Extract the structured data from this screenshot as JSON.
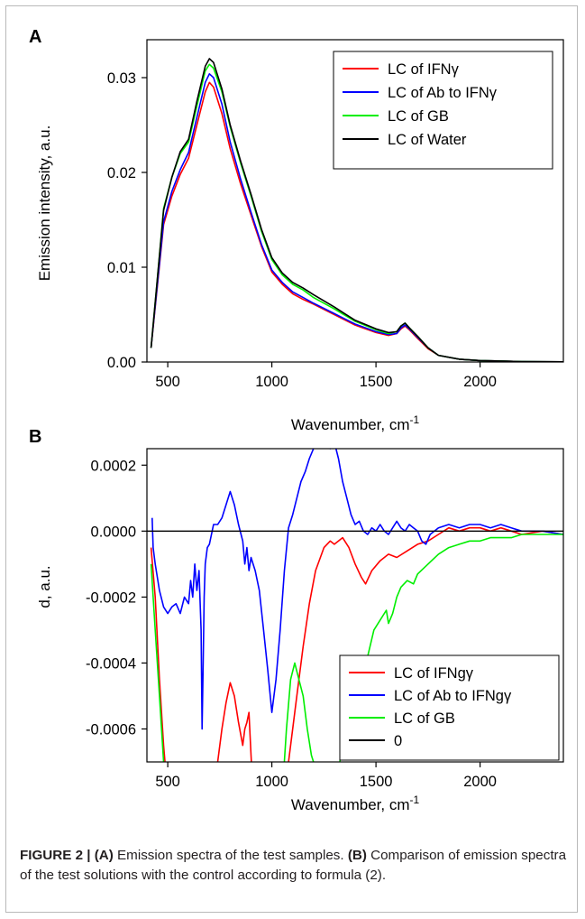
{
  "chart_data": [
    {
      "panel_label": "A",
      "type": "line",
      "xlabel": "Wavenumber, cm",
      "xlabel_sup": "-1",
      "ylabel": "Emission intensity, a.u.",
      "xlim": [
        400,
        2400
      ],
      "ylim": [
        0,
        0.034
      ],
      "xticks": [
        {
          "v": 500,
          "label": "500"
        },
        {
          "v": 1000,
          "label": "1000"
        },
        {
          "v": 1500,
          "label": "1500"
        },
        {
          "v": 2000,
          "label": "2000"
        }
      ],
      "yticks": [
        {
          "v": 0,
          "label": "0.00"
        },
        {
          "v": 0.01,
          "label": "0.01"
        },
        {
          "v": 0.02,
          "label": "0.02"
        },
        {
          "v": 0.03,
          "label": "0.03"
        }
      ],
      "legend_position": "top-right",
      "series": [
        {
          "name": "LC of IFNγ",
          "color": "#ff0000",
          "x": [
            420,
            450,
            480,
            520,
            560,
            600,
            640,
            680,
            700,
            720,
            760,
            800,
            850,
            900,
            950,
            1000,
            1050,
            1100,
            1150,
            1200,
            1300,
            1400,
            1500,
            1560,
            1600,
            1620,
            1640,
            1660,
            1700,
            1750,
            1800,
            1900,
            2000,
            2100,
            2200,
            2300,
            2400
          ],
          "y": [
            0.0015,
            0.008,
            0.0145,
            0.0175,
            0.0198,
            0.0215,
            0.025,
            0.0285,
            0.0295,
            0.029,
            0.0262,
            0.0225,
            0.0188,
            0.0155,
            0.0122,
            0.0095,
            0.0082,
            0.0072,
            0.0066,
            0.0061,
            0.005,
            0.0039,
            0.0031,
            0.0028,
            0.003,
            0.0035,
            0.0038,
            0.0034,
            0.0025,
            0.0014,
            0.0007,
            0.0003,
            0.00015,
            0.0001,
            5e-05,
            3e-05,
            2e-05
          ]
        },
        {
          "name": "LC of Ab to IFNγ",
          "color": "#0000ff",
          "x": [
            420,
            450,
            480,
            520,
            560,
            600,
            640,
            680,
            700,
            720,
            760,
            800,
            850,
            900,
            950,
            1000,
            1050,
            1100,
            1150,
            1200,
            1300,
            1400,
            1500,
            1560,
            1600,
            1620,
            1640,
            1660,
            1700,
            1750,
            1800,
            1900,
            2000,
            2100,
            2200,
            2300,
            2400
          ],
          "y": [
            0.0015,
            0.0082,
            0.0148,
            0.018,
            0.0203,
            0.0221,
            0.0258,
            0.0295,
            0.0304,
            0.03,
            0.0272,
            0.0232,
            0.0193,
            0.0158,
            0.0124,
            0.0097,
            0.0084,
            0.0074,
            0.0068,
            0.0062,
            0.0051,
            0.004,
            0.0032,
            0.0029,
            0.003,
            0.0036,
            0.0039,
            0.0035,
            0.0026,
            0.0015,
            0.0007,
            0.0003,
            0.00015,
            0.0001,
            5e-05,
            3e-05,
            2e-05
          ]
        },
        {
          "name": "LC of GB",
          "color": "#00ee00",
          "x": [
            420,
            450,
            480,
            520,
            560,
            600,
            640,
            680,
            700,
            720,
            760,
            800,
            850,
            900,
            950,
            1000,
            1050,
            1100,
            1150,
            1200,
            1300,
            1400,
            1500,
            1560,
            1600,
            1620,
            1640,
            1660,
            1700,
            1750,
            1800,
            1900,
            2000,
            2100,
            2200,
            2300,
            2400
          ],
          "y": [
            0.0015,
            0.0088,
            0.0162,
            0.0195,
            0.022,
            0.0232,
            0.027,
            0.0307,
            0.0314,
            0.031,
            0.0285,
            0.0248,
            0.021,
            0.0175,
            0.0138,
            0.0108,
            0.0092,
            0.0082,
            0.0076,
            0.0068,
            0.0056,
            0.0043,
            0.0034,
            0.003,
            0.0032,
            0.0038,
            0.0041,
            0.0036,
            0.0027,
            0.0015,
            0.0007,
            0.0003,
            0.00015,
            0.0001,
            5e-05,
            3e-05,
            2e-05
          ]
        },
        {
          "name": "LC of Water",
          "color": "#000000",
          "x": [
            420,
            450,
            480,
            520,
            560,
            600,
            640,
            680,
            700,
            720,
            760,
            800,
            850,
            900,
            950,
            1000,
            1050,
            1100,
            1150,
            1200,
            1300,
            1400,
            1500,
            1560,
            1600,
            1620,
            1640,
            1660,
            1700,
            1750,
            1800,
            1900,
            2000,
            2100,
            2200,
            2300,
            2400
          ],
          "y": [
            0.0015,
            0.0088,
            0.016,
            0.0195,
            0.0222,
            0.0235,
            0.0275,
            0.0312,
            0.032,
            0.0316,
            0.0288,
            0.025,
            0.0212,
            0.0177,
            0.014,
            0.011,
            0.0094,
            0.0084,
            0.0078,
            0.0071,
            0.0058,
            0.0044,
            0.0035,
            0.0031,
            0.0032,
            0.0038,
            0.0041,
            0.0036,
            0.0027,
            0.0015,
            0.0007,
            0.0003,
            0.00015,
            0.0001,
            5e-05,
            3e-05,
            2e-05
          ]
        }
      ]
    },
    {
      "panel_label": "B",
      "type": "line",
      "xlabel": "Wavenumber, cm",
      "xlabel_sup": "-1",
      "ylabel": "d, a.u.",
      "xlim": [
        400,
        2400
      ],
      "ylim": [
        -0.0007,
        0.00025
      ],
      "xticks": [
        {
          "v": 500,
          "label": "500"
        },
        {
          "v": 1000,
          "label": "1000"
        },
        {
          "v": 1500,
          "label": "1500"
        },
        {
          "v": 2000,
          "label": "2000"
        }
      ],
      "yticks": [
        {
          "v": 0.0002,
          "label": "0.0002"
        },
        {
          "v": 0,
          "label": "0.0000"
        },
        {
          "v": -0.0002,
          "label": "-0.0002"
        },
        {
          "v": -0.0004,
          "label": "-0.0004"
        },
        {
          "v": -0.0006,
          "label": "-0.0006"
        }
      ],
      "legend_position": "bottom-right",
      "series": [
        {
          "name": "LC of IFNgγ",
          "color": "#ff0000",
          "segments": [
            {
              "x": [
                420,
                440,
                460,
                480,
                500
              ],
              "y": [
                -5e-05,
                -0.0002,
                -0.00045,
                -0.00065,
                -0.0008
              ]
            },
            {
              "x": [
                720,
                740,
                760,
                780,
                800,
                820,
                840,
                860,
                870,
                880,
                890,
                900,
                910
              ],
              "y": [
                -0.0008,
                -0.0007,
                -0.0006,
                -0.00052,
                -0.00046,
                -0.0005,
                -0.00058,
                -0.00065,
                -0.0006,
                -0.00058,
                -0.00055,
                -0.00068,
                -0.0008
              ]
            },
            {
              "x": [
                1055,
                1080,
                1100,
                1120,
                1150,
                1180,
                1210,
                1250,
                1280,
                1300,
                1340,
                1370,
                1400,
                1430,
                1450,
                1480,
                1520,
                1560,
                1600,
                1650,
                1700,
                1750,
                1800,
                1850,
                1900,
                1950,
                2000,
                2050,
                2100,
                2150,
                2200,
                2300,
                2400
              ],
              "y": [
                -0.0008,
                -0.0007,
                -0.0006,
                -0.0005,
                -0.00035,
                -0.00022,
                -0.00012,
                -5e-05,
                -3e-05,
                -4e-05,
                -2e-05,
                -5e-05,
                -0.0001,
                -0.00014,
                -0.00016,
                -0.00012,
                -9e-05,
                -7e-05,
                -8e-05,
                -6e-05,
                -4e-05,
                -3e-05,
                -1e-05,
                1e-05,
                0.0,
                1e-05,
                1e-05,
                0.0,
                1e-05,
                0.0,
                -1e-05,
                0.0,
                -1e-05
              ]
            }
          ]
        },
        {
          "name": "LC of Ab to IFNgγ",
          "color": "#0000ff",
          "segments": [
            {
              "x": [
                425,
                430,
                440,
                460,
                480,
                500,
                520,
                540,
                560,
                580,
                600,
                610,
                620,
                630,
                640,
                650,
                660,
                665,
                670,
                675,
                680,
                690,
                700,
                720,
                740,
                760,
                780,
                800,
                820,
                840,
                860,
                870,
                880,
                890,
                900,
                920,
                940,
                960,
                980,
                1000,
                1020,
                1040,
                1060,
                1080,
                1100,
                1120,
                1140,
                1160,
                1180,
                1200,
                1220,
                1240,
                1260,
                1280,
                1300,
                1320,
                1340,
                1360,
                1380,
                1400,
                1420,
                1440,
                1460,
                1480,
                1500,
                1520,
                1540,
                1560,
                1580,
                1600,
                1620,
                1640,
                1660,
                1680,
                1700,
                1720,
                1740,
                1760,
                1800,
                1850,
                1900,
                1950,
                2000,
                2050,
                2100,
                2150,
                2200,
                2300,
                2400
              ],
              "y": [
                4e-05,
                -5e-05,
                -0.0001,
                -0.00018,
                -0.00023,
                -0.00025,
                -0.00023,
                -0.00022,
                -0.00025,
                -0.0002,
                -0.00022,
                -0.00015,
                -0.0002,
                -0.0001,
                -0.00018,
                -0.00012,
                -0.0003,
                -0.0006,
                -0.0004,
                -0.0002,
                -0.0001,
                -5e-05,
                -4e-05,
                2e-05,
                2e-05,
                4e-05,
                8e-05,
                0.00012,
                8e-05,
                2e-05,
                -3e-05,
                -0.0001,
                -5e-05,
                -0.00012,
                -8e-05,
                -0.00012,
                -0.00018,
                -0.0003,
                -0.00042,
                -0.00055,
                -0.00045,
                -0.0003,
                -0.00012,
                1e-05,
                5e-05,
                0.0001,
                0.00015,
                0.00018,
                0.00022,
                0.00025,
                0.00028,
                0.0003,
                0.00029,
                0.00025,
                0.00027,
                0.00022,
                0.00015,
                0.0001,
                5e-05,
                2e-05,
                3e-05,
                0.0,
                -1e-05,
                1e-05,
                0.0,
                2e-05,
                0.0,
                -1e-05,
                1e-05,
                3e-05,
                1e-05,
                0.0,
                2e-05,
                1e-05,
                0.0,
                -3e-05,
                -4e-05,
                -1e-05,
                1e-05,
                2e-05,
                1e-05,
                2e-05,
                2e-05,
                1e-05,
                2e-05,
                1e-05,
                0.0,
                0.0,
                -1e-05
              ]
            }
          ]
        },
        {
          "name": "LC of GB",
          "color": "#00ee00",
          "segments": [
            {
              "x": [
                420,
                440,
                460,
                480,
                500
              ],
              "y": [
                -0.0001,
                -0.0003,
                -0.0005,
                -0.0007,
                -0.0008
              ]
            },
            {
              "x": [
                1050,
                1070,
                1090,
                1110,
                1130,
                1150,
                1170,
                1190,
                1210,
                1230,
                1250
              ],
              "y": [
                -0.0008,
                -0.0006,
                -0.00045,
                -0.0004,
                -0.00045,
                -0.0005,
                -0.0006,
                -0.00068,
                -0.00072,
                -0.0008,
                -0.00075
              ]
            },
            {
              "x": [
                1310,
                1330,
                1360,
                1400,
                1430,
                1460,
                1490,
                1520,
                1550,
                1560,
                1580,
                1600,
                1620,
                1650,
                1680,
                1700,
                1750,
                1800,
                1850,
                1900,
                1950,
                2000,
                2050,
                2100,
                2150,
                2200,
                2250,
                2300,
                2400
              ],
              "y": [
                -0.0008,
                -0.00068,
                -0.0006,
                -0.00052,
                -0.00045,
                -0.00038,
                -0.0003,
                -0.00027,
                -0.00024,
                -0.00028,
                -0.00025,
                -0.0002,
                -0.00017,
                -0.00015,
                -0.00016,
                -0.00013,
                -0.0001,
                -7e-05,
                -5e-05,
                -4e-05,
                -3e-05,
                -3e-05,
                -2e-05,
                -2e-05,
                -2e-05,
                -1e-05,
                -1e-05,
                -1e-05,
                -1e-05
              ]
            }
          ]
        },
        {
          "name": "0",
          "color": "#000000",
          "segments": [
            {
              "x": [
                400,
                2400
              ],
              "y": [
                0,
                0
              ]
            }
          ]
        }
      ]
    }
  ],
  "caption": {
    "label": "FIGURE 2 | ",
    "part_a_label": "(A)",
    "part_a_text": " Emission spectra of the test samples. ",
    "part_b_label": "(B)",
    "part_b_text": " Comparison of emission spectra of the test solutions with the control according to formula (2)."
  }
}
